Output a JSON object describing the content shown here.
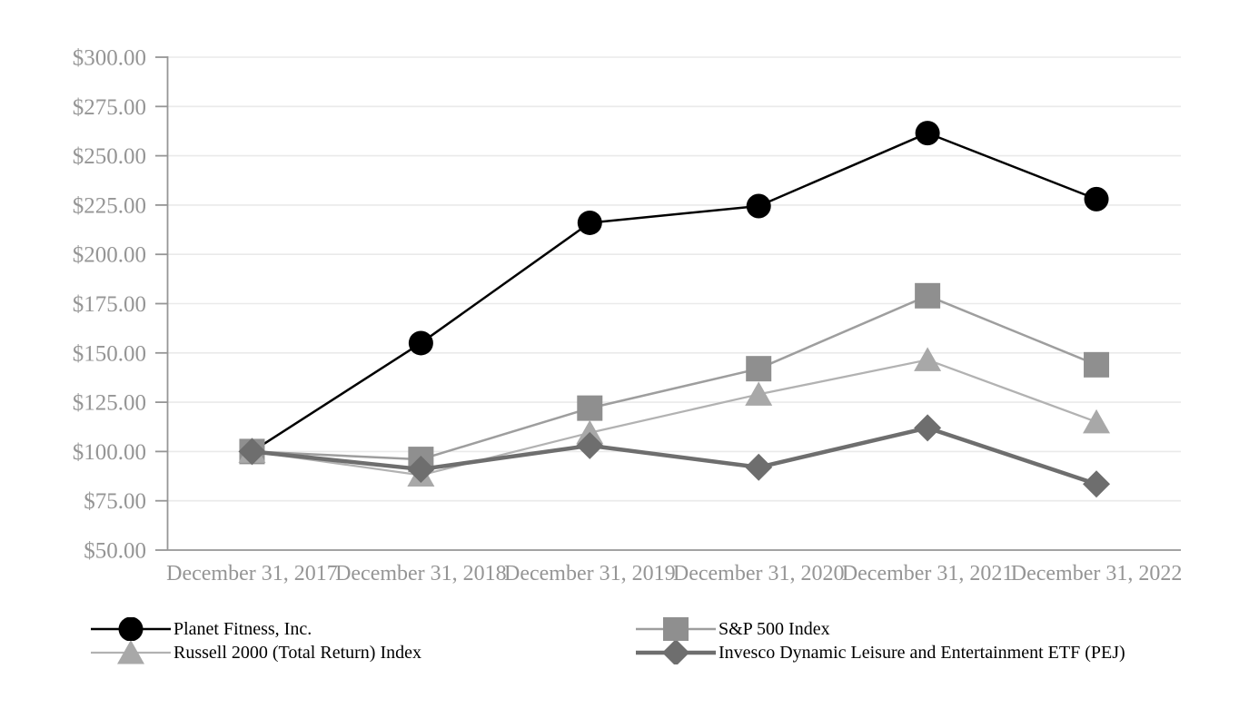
{
  "chart_data": {
    "type": "line",
    "title": "",
    "xlabel": "",
    "ylabel": "",
    "grid": true,
    "legend_position": "bottom",
    "ylim": [
      50,
      300
    ],
    "y_step": 25,
    "y_ticks": [
      {
        "value": 300,
        "label": "$300.00"
      },
      {
        "value": 275,
        "label": "$275.00"
      },
      {
        "value": 250,
        "label": "$250.00"
      },
      {
        "value": 225,
        "label": "$225.00"
      },
      {
        "value": 200,
        "label": "$200.00"
      },
      {
        "value": 175,
        "label": "$175.00"
      },
      {
        "value": 150,
        "label": "$150.00"
      },
      {
        "value": 125,
        "label": "$125.00"
      },
      {
        "value": 100,
        "label": "$100.00"
      },
      {
        "value": 75,
        "label": "$75.00"
      },
      {
        "value": 50,
        "label": "$50.00"
      }
    ],
    "categories": [
      "December 31, 2017",
      "December 31, 2018",
      "December 31, 2019",
      "December 31, 2020",
      "December 31, 2021",
      "December 31, 2022"
    ],
    "series": [
      {
        "name": "Planet Fitness, Inc.",
        "marker": "circle",
        "marker_color": "#000000",
        "line_color": "#000000",
        "line_width": 2.5,
        "values": [
          100.0,
          155.0,
          216.0,
          224.5,
          261.5,
          228.0
        ]
      },
      {
        "name": "S&P 500 Index",
        "marker": "square",
        "marker_color": "#8f8f8f",
        "line_color": "#9e9e9e",
        "line_width": 2.5,
        "values": [
          100.0,
          96.0,
          122.0,
          142.0,
          179.0,
          144.0
        ]
      },
      {
        "name": "Russell 2000 (Total Return) Index",
        "marker": "triangle",
        "marker_color": "#a8a8a8",
        "line_color": "#b2b2b2",
        "line_width": 2.25,
        "values": [
          100.0,
          88.0,
          109.5,
          129.0,
          146.5,
          115.0
        ]
      },
      {
        "name": "Invesco Dynamic Leisure and Entertainment ETF (PEJ)",
        "marker": "diamond",
        "marker_color": "#6e6e6e",
        "line_color": "#6e6e6e",
        "line_width": 4.5,
        "values": [
          100.0,
          91.0,
          103.0,
          92.0,
          112.0,
          83.5
        ]
      }
    ],
    "colors": {
      "gridline": "#eaeaea",
      "axis": "#969696",
      "tick_label": "#959595"
    }
  }
}
